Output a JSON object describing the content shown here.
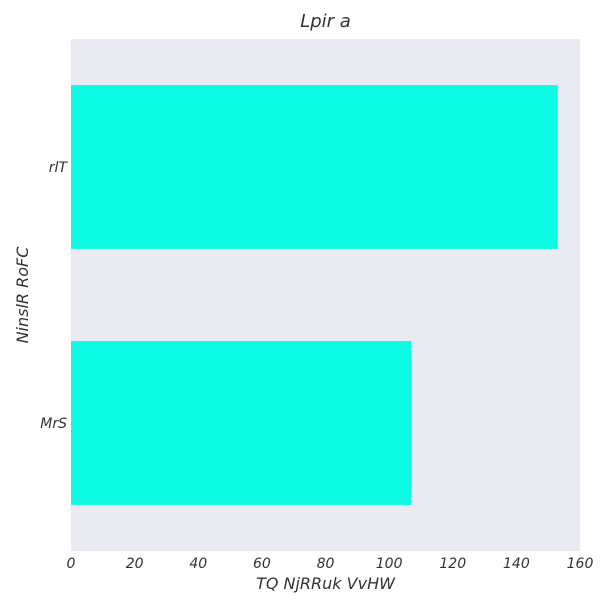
{
  "chart_data": {
    "type": "bar",
    "orientation": "horizontal",
    "title": "Lpir a",
    "xlabel": "TQ NjRRuk VvHW",
    "ylabel": "NinslR RoFC",
    "categories": [
      "rlT",
      "MrS"
    ],
    "values": [
      153,
      107
    ],
    "xlim": [
      0,
      160
    ],
    "xticks": [
      0,
      20,
      40,
      60,
      80,
      100,
      120,
      140,
      160
    ],
    "grid": false,
    "legend": "none",
    "colors": {
      "bar": "#0efbe3",
      "plot_background": "#eaeaf2",
      "text": "#333333"
    }
  }
}
